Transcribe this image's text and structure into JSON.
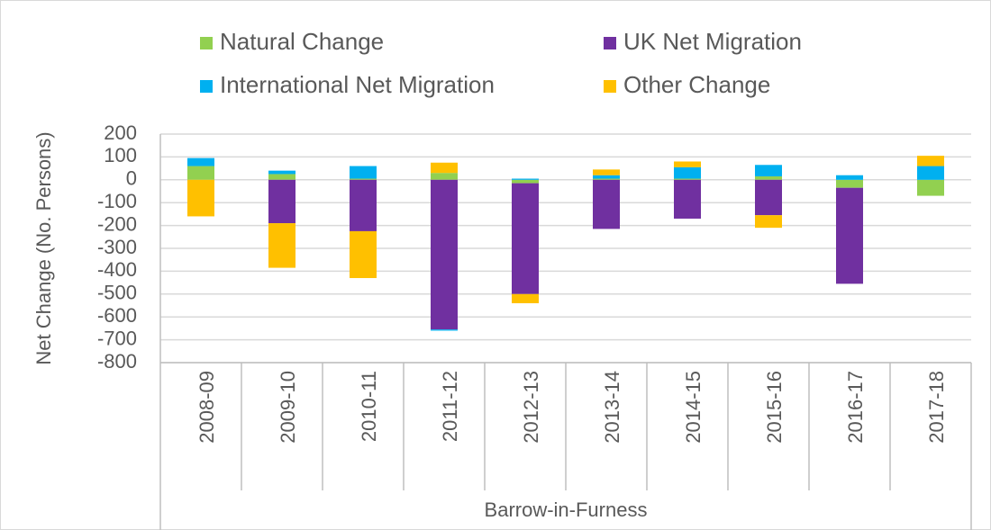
{
  "chart_data": {
    "type": "bar",
    "stacked": true,
    "y_label": "Net Change (No. Persons)",
    "group_label": "Barrow-in-Furness",
    "categories": [
      "2008-09",
      "2009-10",
      "2010-11",
      "2011-12",
      "2012-13",
      "2013-14",
      "2014-15",
      "2015-16",
      "2016-17",
      "2017-18"
    ],
    "series": [
      {
        "name": "Natural Change",
        "color": "#92d050",
        "values": [
          60,
          25,
          5,
          30,
          -15,
          5,
          5,
          15,
          -35,
          -70
        ]
      },
      {
        "name": "UK Net Migration",
        "color": "#7030a0",
        "values": [
          0,
          -190,
          -225,
          -655,
          -485,
          -215,
          -170,
          -155,
          -420,
          0
        ]
      },
      {
        "name": "International Net Migration",
        "color": "#00b0f0",
        "values": [
          35,
          15,
          55,
          -5,
          5,
          15,
          50,
          50,
          20,
          60
        ]
      },
      {
        "name": "Other Change",
        "color": "#ffc000",
        "values": [
          -160,
          -195,
          -205,
          45,
          -40,
          25,
          25,
          -55,
          0,
          45
        ]
      }
    ],
    "ylim": [
      -800,
      200
    ],
    "yticks": [
      -800,
      -700,
      -600,
      -500,
      -400,
      -300,
      -200,
      -100,
      0,
      100,
      200
    ],
    "grid": true
  }
}
